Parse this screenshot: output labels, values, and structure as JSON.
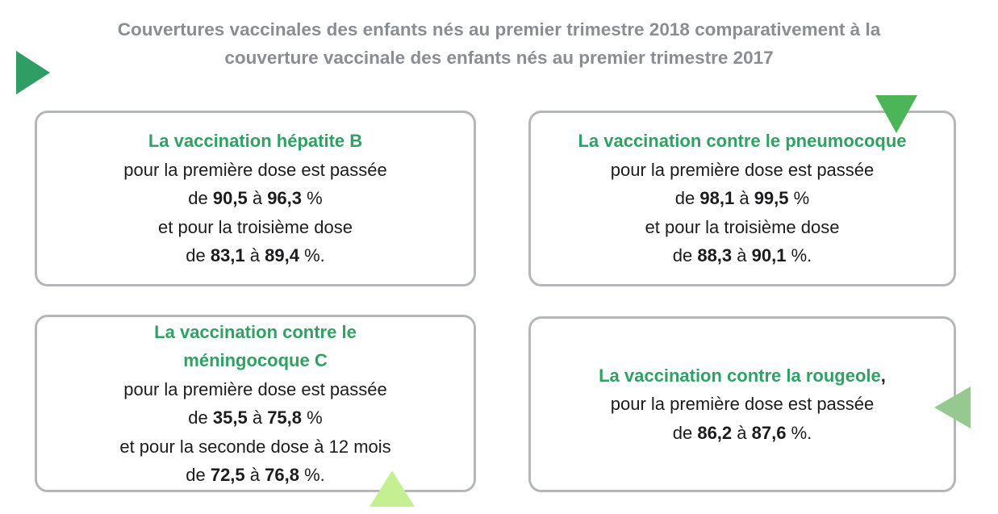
{
  "header": {
    "title_line1": "Couvertures vaccinales des enfants nés au premier trimestre 2018 comparativement à la",
    "title_line2": "couverture vaccinale des enfants nés au premier trimestre 2017"
  },
  "colors": {
    "title_gray": "#8A8D92",
    "text_black": "#1C1C1E",
    "green": "#2FA164",
    "card_border": "#B4B6B9",
    "tri_dark_green": "#2F9E64",
    "tri_bright_green": "#4CB558",
    "tri_light_green": "#C5F092",
    "tri_sage_green": "#96C98F"
  },
  "decorations": [
    {
      "name": "triangle-right-icon",
      "color_key": "tri_dark_green"
    },
    {
      "name": "triangle-down-icon",
      "color_key": "tri_bright_green"
    },
    {
      "name": "triangle-up-icon",
      "color_key": "tri_light_green"
    },
    {
      "name": "triangle-left-icon",
      "color_key": "tri_sage_green"
    }
  ],
  "cards": [
    {
      "id": "hepatite-b",
      "lines": [
        [
          {
            "t": "La vaccination hépatite B",
            "green": true
          }
        ],
        [
          {
            "t": "pour la première dose est passée"
          }
        ],
        [
          {
            "t": "de "
          },
          {
            "t": "90,5",
            "bold": true
          },
          {
            "t": " à "
          },
          {
            "t": "96,3",
            "bold": true
          },
          {
            "t": " %"
          }
        ],
        [
          {
            "t": "et pour la troisième dose"
          }
        ],
        [
          {
            "t": "de "
          },
          {
            "t": "83,1",
            "bold": true
          },
          {
            "t": " à "
          },
          {
            "t": "89,4",
            "bold": true
          },
          {
            "t": " %."
          }
        ]
      ]
    },
    {
      "id": "pneumocoque",
      "lines": [
        [
          {
            "t": "La vaccination contre le pneumocoque",
            "green": true
          }
        ],
        [
          {
            "t": "pour la première dose est passée"
          }
        ],
        [
          {
            "t": "de "
          },
          {
            "t": "98,1",
            "bold": true
          },
          {
            "t": " à "
          },
          {
            "t": "99,5",
            "bold": true
          },
          {
            "t": " %"
          }
        ],
        [
          {
            "t": "et pour la troisième dose"
          }
        ],
        [
          {
            "t": "de "
          },
          {
            "t": "88,3",
            "bold": true
          },
          {
            "t": " à "
          },
          {
            "t": "90,1",
            "bold": true
          },
          {
            "t": " %."
          }
        ]
      ]
    },
    {
      "id": "meningocoque-c",
      "lines": [
        [
          {
            "t": "La vaccination contre le",
            "green": true
          }
        ],
        [
          {
            "t": "méningocoque C",
            "green": true
          }
        ],
        [
          {
            "t": "pour la première dose est passée"
          }
        ],
        [
          {
            "t": "de "
          },
          {
            "t": "35,5",
            "bold": true
          },
          {
            "t": " à "
          },
          {
            "t": "75,8",
            "bold": true
          },
          {
            "t": " %"
          }
        ],
        [
          {
            "t": "et pour la seconde dose à 12 mois"
          }
        ],
        [
          {
            "t": "de "
          },
          {
            "t": "72,5",
            "bold": true
          },
          {
            "t": " à "
          },
          {
            "t": "76,8",
            "bold": true
          },
          {
            "t": " %."
          }
        ]
      ]
    },
    {
      "id": "rougeole",
      "lines": [
        [
          {
            "t": "La vaccination contre la rougeole",
            "green": true
          },
          {
            "t": ",",
            "bold": true
          }
        ],
        [
          {
            "t": "pour la première dose est passée"
          }
        ],
        [
          {
            "t": "de "
          },
          {
            "t": "86,2",
            "bold": true
          },
          {
            "t": " à "
          },
          {
            "t": "87,6",
            "bold": true
          },
          {
            "t": " %."
          }
        ]
      ]
    }
  ]
}
